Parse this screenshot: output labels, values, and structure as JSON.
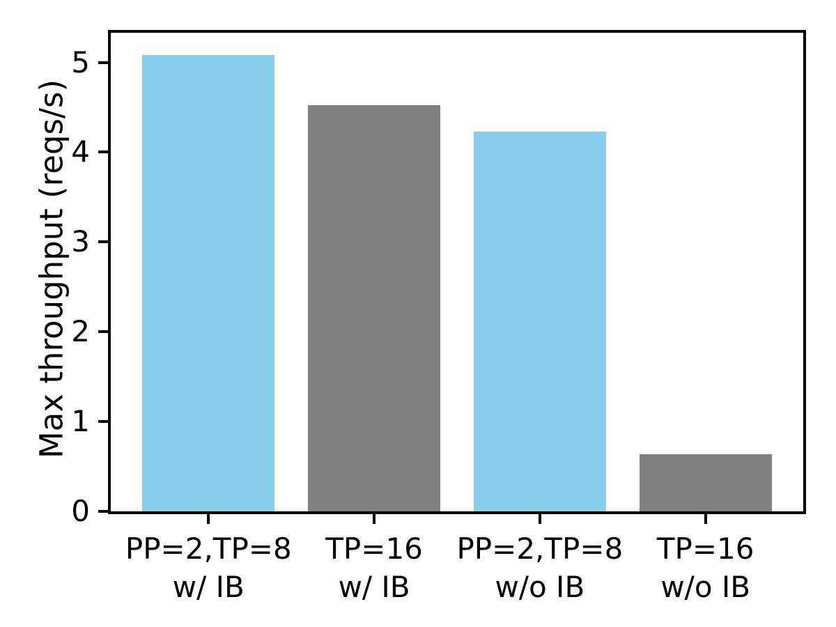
{
  "chart_data": {
    "type": "bar",
    "categories": [
      "PP=2,TP=8",
      "TP=16",
      "PP=2,TP=8",
      "TP=16"
    ],
    "category_sublabels": [
      "w/ IB",
      "w/ IB",
      "w/o IB",
      "w/o IB"
    ],
    "values": [
      5.08,
      4.52,
      4.23,
      0.64
    ],
    "bar_colors": [
      "#87CEEB",
      "#808080",
      "#87CEEB",
      "#808080"
    ],
    "title": "",
    "xlabel": "",
    "ylabel": "Max throughput (reqs/s)",
    "yticks": [
      0,
      1,
      2,
      3,
      4,
      5
    ],
    "ylim": [
      0,
      5.33
    ],
    "grid": false,
    "legend": "none",
    "axis_color": "#000000",
    "background_color": "#ffffff"
  }
}
